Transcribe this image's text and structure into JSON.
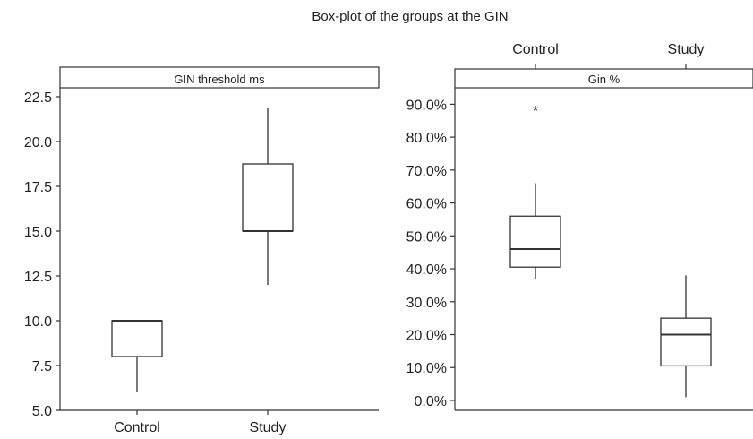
{
  "figure": {
    "title": "Box-plot of the groups at the GIN"
  },
  "colors": {
    "ink": "#333333",
    "background": "#ffffff"
  },
  "chart_data": [
    {
      "type": "boxplot",
      "title": "GIN threshold ms",
      "xlabel": "",
      "ylabel": "",
      "categories": [
        "Control",
        "Study"
      ],
      "x_axis_position": "bottom",
      "ylim": [
        5.0,
        23.0
      ],
      "y_ticks": [
        5.0,
        7.5,
        10.0,
        12.5,
        15.0,
        17.5,
        20.0,
        22.5
      ],
      "y_tick_labels": [
        "5.0",
        "7.5",
        "10.0",
        "12.5",
        "15.0",
        "17.5",
        "20.0",
        "22.5"
      ],
      "grid": false,
      "boxes": [
        {
          "category": "Control",
          "whisker_low": 6.0,
          "q1": 8.0,
          "median": 10.0,
          "q3": 10.0,
          "whisker_high": 10.0,
          "outliers": []
        },
        {
          "category": "Study",
          "whisker_low": 12.0,
          "q1": 15.0,
          "median": 15.0,
          "q3": 18.75,
          "whisker_high": 21.9,
          "outliers": []
        }
      ]
    },
    {
      "type": "boxplot",
      "title": "Gin %",
      "xlabel": "",
      "ylabel": "",
      "categories": [
        "Control",
        "Study"
      ],
      "x_axis_position": "top",
      "ylim": [
        -3.0,
        95.0
      ],
      "y_ticks": [
        0,
        10,
        20,
        30,
        40,
        50,
        60,
        70,
        80,
        90
      ],
      "y_tick_labels": [
        "0.0%",
        "10.0%",
        "20.0%",
        "30.0%",
        "40.0%",
        "50.0%",
        "60.0%",
        "70.0%",
        "80.0%",
        "90.0%"
      ],
      "grid": false,
      "boxes": [
        {
          "category": "Control",
          "whisker_low": 37.0,
          "q1": 40.5,
          "median": 46.0,
          "q3": 56.0,
          "whisker_high": 66.0,
          "outliers": [],
          "extreme_outliers": [
            89.0
          ]
        },
        {
          "category": "Study",
          "whisker_low": 1.0,
          "q1": 10.5,
          "median": 20.0,
          "q3": 25.0,
          "whisker_high": 38.0,
          "outliers": []
        }
      ],
      "outlier_marker": "*"
    }
  ]
}
